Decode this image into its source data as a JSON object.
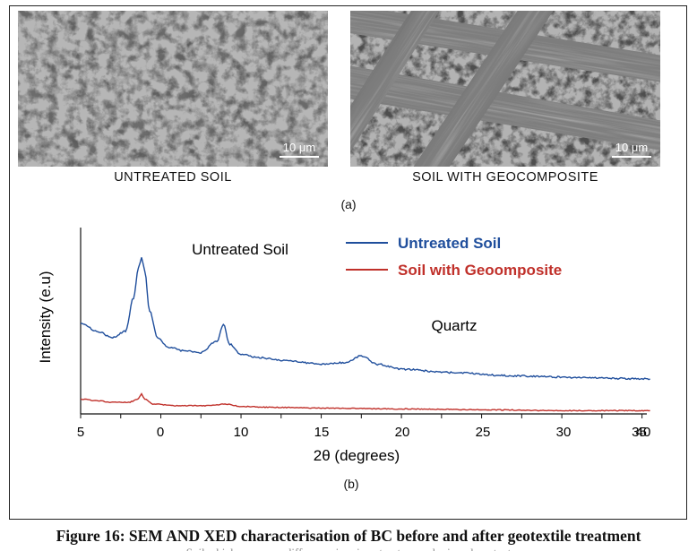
{
  "panel_a": {
    "left_image": {
      "label": "UNTREATED SOIL",
      "scale_bar": "10 μm"
    },
    "right_image": {
      "label": "SOIL WITH GEOCOMPOSITE",
      "scale_bar": "10 μm"
    },
    "tag": "(a)"
  },
  "panel_b": {
    "tag": "(b)"
  },
  "chart_data": {
    "type": "line",
    "title": "",
    "xlabel": "2θ (degrees)",
    "ylabel": "Intensity (e.u)",
    "xlim": [
      5,
      40
    ],
    "x_ticks": [
      "5",
      "0",
      "10",
      "15",
      "20",
      "25",
      "30",
      "35",
      "40"
    ],
    "grid": false,
    "legend_position": "top-right",
    "annotations": [
      {
        "text": "Untreated Soil",
        "x": 8.8,
        "y": 102
      },
      {
        "text": "Quartz",
        "x": 22.6,
        "y": 52
      }
    ],
    "series": [
      {
        "name": "Untreated Soil",
        "color": "#1f4e9c",
        "x": [
          5,
          6,
          7,
          7.8,
          8.3,
          8.6,
          8.8,
          9.0,
          9.3,
          9.8,
          10.5,
          11.5,
          12.5,
          13.5,
          13.9,
          14.3,
          15,
          16,
          18,
          20,
          21.5,
          22.5,
          23.5,
          25,
          28,
          32,
          36,
          40.5
        ],
        "y": [
          55,
          50,
          46,
          50,
          70,
          88,
          94,
          86,
          62,
          46,
          40,
          38,
          37,
          44,
          54,
          42,
          36,
          34,
          32,
          30,
          31,
          35,
          30,
          27,
          25,
          23,
          22,
          21
        ]
      },
      {
        "name": "Soil with Geoomposite",
        "color": "#c0302a",
        "x": [
          5,
          6,
          7,
          8,
          8.6,
          8.8,
          9.0,
          9.5,
          11,
          13,
          14,
          15,
          17,
          20,
          25,
          30,
          35,
          40.5
        ],
        "y": [
          9,
          8,
          7,
          7,
          9,
          12,
          9,
          6,
          5,
          5,
          6,
          4.5,
          4,
          3.5,
          3,
          2.5,
          2,
          2
        ]
      }
    ]
  },
  "caption": "Figure 16: SEM AND XED characterisation of BC before and after geotextile treatment",
  "cut_text": "Soil which appears a difference in microstructure and mineral content"
}
